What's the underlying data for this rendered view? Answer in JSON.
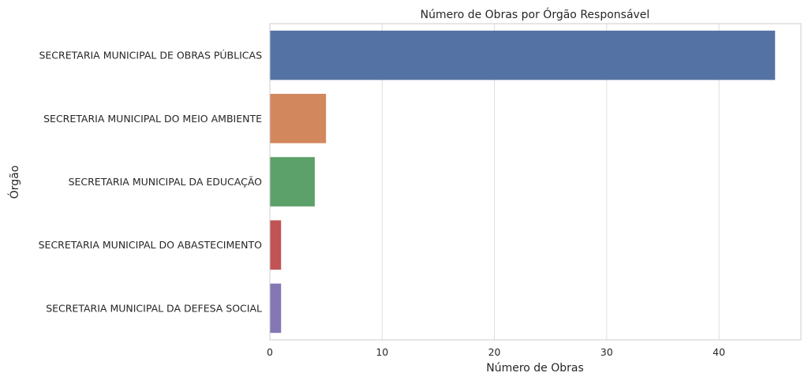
{
  "chart_data": {
    "type": "bar",
    "orientation": "horizontal",
    "title": "Número de Obras por Órgão Responsável",
    "xlabel": "Número de Obras",
    "ylabel": "Órgão",
    "categories": [
      "SECRETARIA MUNICIPAL DE OBRAS PÚBLICAS",
      "SECRETARIA MUNICIPAL DO MEIO AMBIENTE",
      "SECRETARIA MUNICIPAL DA EDUCAÇÃO",
      "SECRETARIA MUNICIPAL DO ABASTECIMENTO",
      "SECRETARIA MUNICIPAL DA DEFESA SOCIAL"
    ],
    "values": [
      45,
      5,
      4,
      1,
      1
    ],
    "colors": [
      "#5572a5",
      "#d2875d",
      "#5ca06a",
      "#c05355",
      "#8577b4"
    ],
    "xlim": [
      0,
      47.3
    ],
    "xticks": [
      0,
      10,
      20,
      30,
      40
    ],
    "grid": "vertical",
    "legend": "none"
  }
}
